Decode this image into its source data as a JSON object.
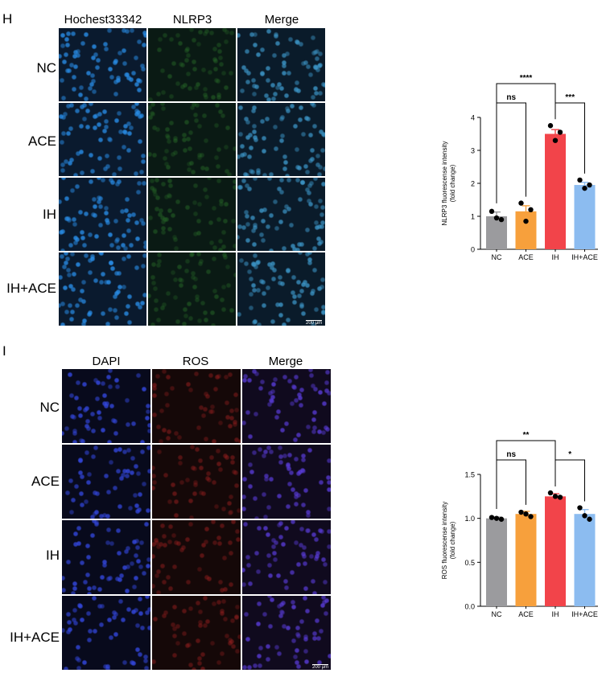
{
  "panelH": {
    "letter": "H",
    "columns": [
      "Hochest33342",
      "NLRP3",
      "Merge"
    ],
    "rows": [
      "NC",
      "ACE",
      "IH",
      "IH+ACE"
    ],
    "scale_bar": "200 μm"
  },
  "panelI": {
    "letter": "I",
    "columns": [
      "DAPI",
      "ROS",
      "Merge"
    ],
    "rows": [
      "NC",
      "ACE",
      "IH",
      "IH+ACE"
    ],
    "scale_bar": "200 μm"
  },
  "colors": {
    "NC": "#9b9b9e",
    "ACE": "#f7a03c",
    "IH": "#f2444a",
    "IH+ACE": "#8cbcf0"
  },
  "chart_data": [
    {
      "type": "bar",
      "categories": [
        "NC",
        "ACE",
        "IH",
        "IH+ACE"
      ],
      "values": [
        1.0,
        1.15,
        3.5,
        1.95
      ],
      "errors": [
        0.13,
        0.17,
        0.13,
        0.08
      ],
      "points": [
        [
          1.15,
          0.9,
          0.95
        ],
        [
          1.4,
          1.2,
          0.85
        ],
        [
          3.75,
          3.55,
          3.3
        ],
        [
          2.1,
          1.95,
          1.85
        ]
      ],
      "ylabel": "NLRP3 fluorescense intensity\n(fold change)",
      "ylabel_lines": [
        "NLRP3 fluorescense intensity",
        "(fold change)"
      ],
      "ylim": [
        0,
        4
      ],
      "yticks": [
        0,
        1,
        2,
        3,
        4
      ],
      "ytick_labels": [
        "0",
        "1",
        "2",
        "3",
        "4"
      ],
      "significance": [
        {
          "from": 0,
          "to": 1,
          "label": "ns",
          "level": 1
        },
        {
          "from": 2,
          "to": 3,
          "label": "***",
          "level": 1
        },
        {
          "from": 0,
          "to": 2,
          "label": "****",
          "level": 2
        }
      ]
    },
    {
      "type": "bar",
      "categories": [
        "NC",
        "ACE",
        "IH",
        "IH+ACE"
      ],
      "values": [
        1.0,
        1.05,
        1.25,
        1.05
      ],
      "errors": [
        0.015,
        0.03,
        0.03,
        0.05
      ],
      "points": [
        [
          1.01,
          0.99,
          1.0
        ],
        [
          1.07,
          1.02,
          1.05
        ],
        [
          1.29,
          1.24,
          1.25
        ],
        [
          1.12,
          0.99,
          1.03
        ]
      ],
      "ylabel": "ROS fluorescense intensity\n(fold change)",
      "ylabel_lines": [
        "ROS fluorescense intensity",
        "(fold change)"
      ],
      "ylim": [
        0,
        1.5
      ],
      "yticks": [
        0,
        0.5,
        1.0,
        1.5
      ],
      "ytick_labels": [
        "0.0",
        "0.5",
        "1.0",
        "1.5"
      ],
      "significance": [
        {
          "from": 0,
          "to": 1,
          "label": "ns",
          "level": 1
        },
        {
          "from": 2,
          "to": 3,
          "label": "*",
          "level": 1
        },
        {
          "from": 0,
          "to": 2,
          "label": "**",
          "level": 2
        }
      ]
    }
  ]
}
